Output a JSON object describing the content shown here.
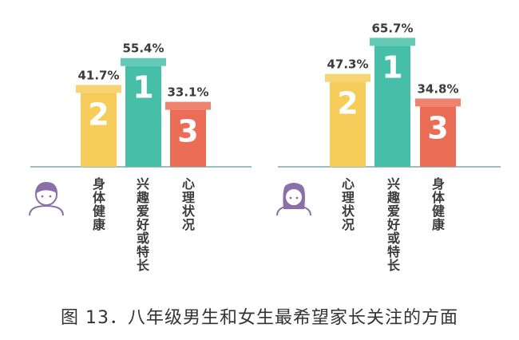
{
  "caption": "图 13．八年级男生和女生最希望家长关注的方面",
  "chart_data": [
    {
      "type": "bar",
      "group": "boys",
      "categories": [
        "身体健康",
        "兴趣爱好或特长",
        "心理状况"
      ],
      "ranks": [
        "2",
        "1",
        "3"
      ],
      "values": [
        41.7,
        55.4,
        33.1
      ],
      "value_labels": [
        "41.7%",
        "55.4%",
        "33.1%"
      ],
      "colors": [
        "#F6CD5B",
        "#47BFA8",
        "#EC6D56"
      ]
    },
    {
      "type": "bar",
      "group": "girls",
      "categories": [
        "心理状况",
        "兴趣爱好或特长",
        "身体健康"
      ],
      "ranks": [
        "2",
        "1",
        "3"
      ],
      "values": [
        47.3,
        65.7,
        34.8
      ],
      "value_labels": [
        "47.3%",
        "65.7%",
        "34.8%"
      ],
      "colors": [
        "#F6CD5B",
        "#47BFA8",
        "#EC6D56"
      ]
    }
  ],
  "colors": {
    "axis": "#7aa9a6",
    "text": "#333333",
    "avatar": "#8b6fa8"
  },
  "icons": [
    "boy-avatar-icon",
    "girl-avatar-icon"
  ]
}
